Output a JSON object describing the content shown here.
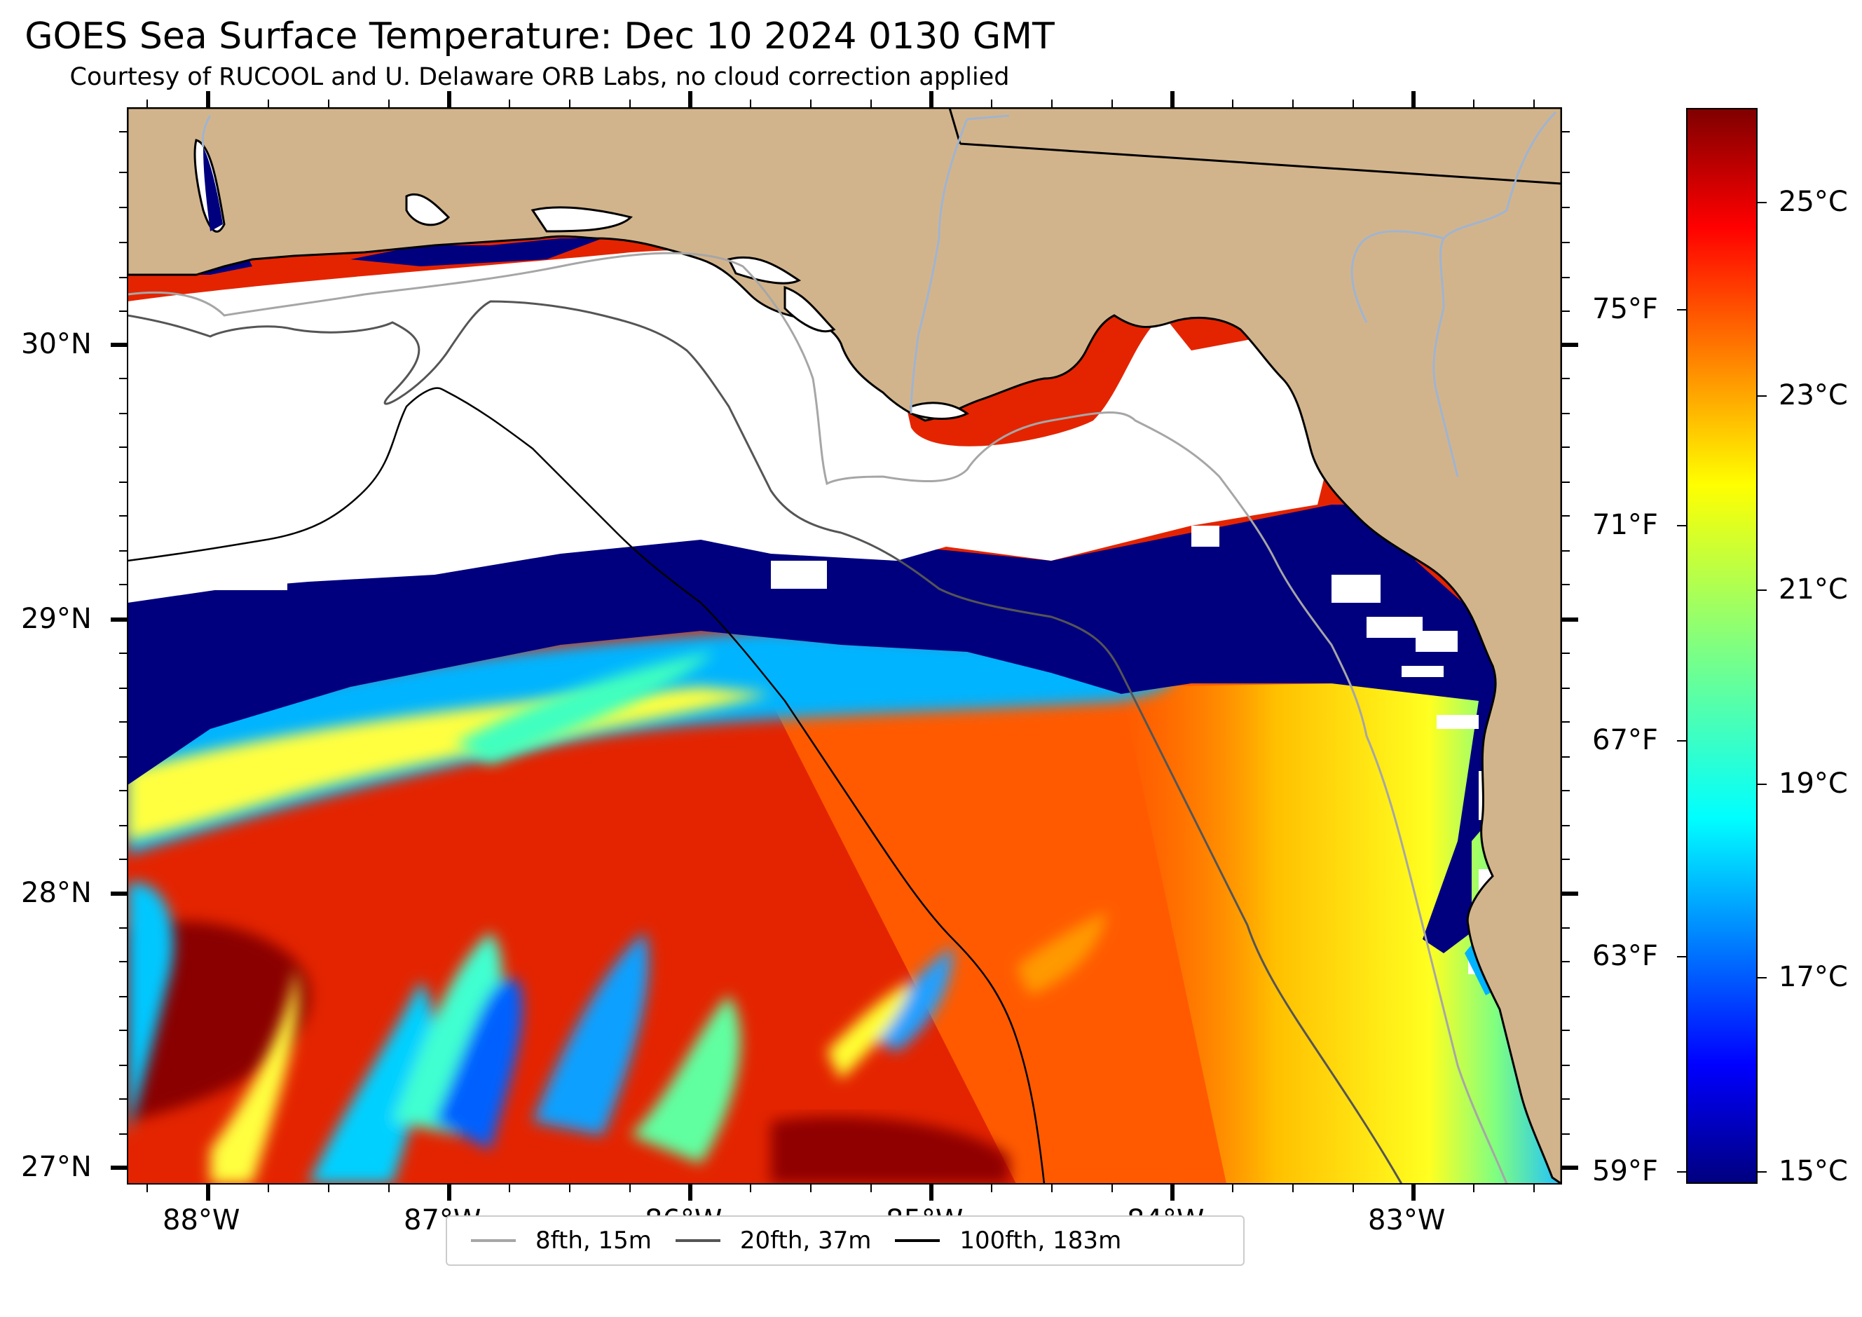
{
  "title": "GOES Sea Surface Temperature: Dec 10 2024 0130 GMT",
  "subtitle": "Courtesy of RUCOOL and U. Delaware ORB Labs, no cloud correction applied",
  "map": {
    "extent": {
      "lon_min": -88.33,
      "lon_max": -82.38,
      "lat_min": 26.93,
      "lat_max": 30.85
    },
    "colors": {
      "land": "#d2b48c",
      "cloud_mask": "#ffffff",
      "coast": "#000000",
      "rivers": "#a0b4d0"
    },
    "lat_ticks": [
      "30°N",
      "29°N",
      "28°N",
      "27°N"
    ],
    "lon_ticks": [
      "88°W",
      "87°W",
      "86°W",
      "85°W",
      "84°W",
      "83°W"
    ]
  },
  "colorbar": {
    "colormap": "jet",
    "range_c": [
      14.8,
      26.0
    ],
    "celsius_ticks": [
      "25°C",
      "23°C",
      "21°C",
      "19°C",
      "17°C",
      "15°C"
    ],
    "fahrenheit_ticks": [
      "75°F",
      "71°F",
      "67°F",
      "63°F",
      "59°F"
    ]
  },
  "legend": {
    "items": [
      {
        "label": "8fth, 15m",
        "color": "#a6a6a6"
      },
      {
        "label": "20fth, 37m",
        "color": "#555555"
      },
      {
        "label": "100fth, 183m",
        "color": "#000000"
      }
    ]
  }
}
